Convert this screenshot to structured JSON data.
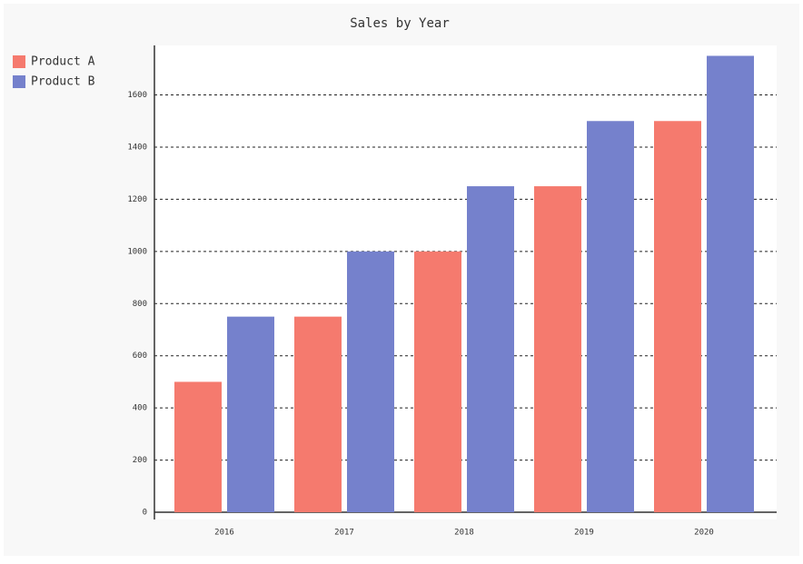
{
  "chart_data": {
    "type": "bar",
    "title": "Sales by Year",
    "categories": [
      "2016",
      "2017",
      "2018",
      "2019",
      "2020"
    ],
    "series": [
      {
        "name": "Product A",
        "color": "#f57a6e",
        "values": [
          500,
          750,
          1000,
          1250,
          1500
        ]
      },
      {
        "name": "Product B",
        "color": "#7581cc",
        "values": [
          750,
          1000,
          1250,
          1500,
          1750
        ]
      }
    ],
    "ylim": [
      0,
      1790
    ],
    "yticks": [
      0,
      200,
      400,
      600,
      800,
      1000,
      1200,
      1400,
      1600
    ],
    "grid": true,
    "legend": "top-left"
  }
}
